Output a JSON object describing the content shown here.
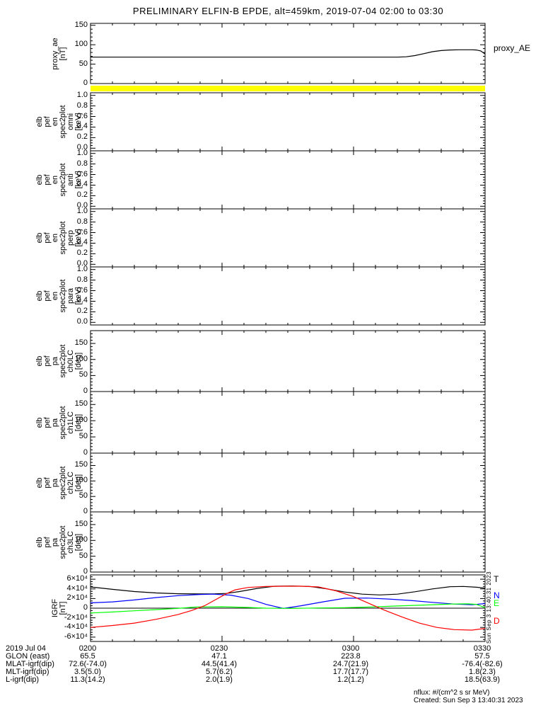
{
  "title": "PRELIMINARY ELFIN-B EPDE, alt=459km, 2019-07-04 02:00 to 03:30",
  "side_timestamp": "Sun Sep  3 13:40:31 2023",
  "footer": {
    "nflux": "nflux: #/(cm^2 s sr MeV)",
    "created": "Created: Sun Sep  3 13:40:31 2023"
  },
  "xaxis": {
    "date_label": "2019 Jul 04",
    "range_minutes": [
      0,
      90
    ],
    "tick_minutes": [
      0,
      30,
      60,
      90
    ],
    "tick_labels": [
      "0200",
      "0230",
      "0300",
      "0330"
    ],
    "minor_step_minutes": 5
  },
  "table": {
    "rows": [
      {
        "label": "GLON (east)",
        "values": [
          "65.5",
          "47.1",
          "223.8",
          "57.5"
        ]
      },
      {
        "label": "MLAT-igrf(dip)",
        "values": [
          "72.6(-74.0)",
          "44.5(41.4)",
          "24.7(21.9)",
          "-76.4(-82.6)"
        ]
      },
      {
        "label": "MLT-igrf(dip)",
        "values": [
          "3.5(5.0)",
          "5.7(6.2)",
          "17.7(17.7)",
          "1.8(2.3)"
        ]
      },
      {
        "label": "L-igrf(dip)",
        "values": [
          "11.3(14.2)",
          "2.0(1.9)",
          "1.2(1.2)",
          "18.5(63.9)"
        ]
      }
    ]
  },
  "chart_data": [
    {
      "id": "proxy_ae",
      "type": "line",
      "ylabel_lines": [
        "proxy_ae",
        "[nT]"
      ],
      "ylim": [
        0,
        155
      ],
      "yminor": 10,
      "yticks": [
        {
          "v": 0,
          "label": "0"
        },
        {
          "v": 50,
          "label": "50"
        },
        {
          "v": 100,
          "label": "100"
        },
        {
          "v": 150,
          "label": "150"
        }
      ],
      "right_labels": [
        {
          "text": "proxy_AE",
          "color": "#000000"
        }
      ],
      "series": [
        {
          "name": "proxy_AE",
          "color": "#000000",
          "x": [
            0,
            10,
            20,
            30,
            40,
            50,
            60,
            66,
            70,
            72,
            74,
            76,
            78,
            80,
            82,
            84,
            86,
            87,
            88,
            89,
            90
          ],
          "y": [
            68,
            68,
            68,
            68,
            68,
            68,
            68,
            68,
            68,
            69,
            72,
            77,
            82,
            85,
            86.5,
            87,
            87,
            87,
            86.5,
            84,
            76
          ]
        }
      ]
    },
    {
      "id": "omni_strip",
      "type": "strip",
      "color": "#FFFF00"
    },
    {
      "id": "omni",
      "type": "spec",
      "ylabel_lines": [
        "elb",
        "pef",
        "en",
        "spec2plot",
        "omni",
        "[keV]"
      ],
      "ylim": [
        -0.05,
        1.05
      ],
      "yminor": 0.05,
      "yticks": [
        {
          "v": 0,
          "label": "0.0"
        },
        {
          "v": 0.2,
          "label": "0.2"
        },
        {
          "v": 0.4,
          "label": "0.4"
        },
        {
          "v": 0.6,
          "label": "0.6"
        },
        {
          "v": 0.8,
          "label": "0.8"
        },
        {
          "v": 1.0,
          "label": "1.0"
        }
      ],
      "series": []
    },
    {
      "id": "anti",
      "type": "spec",
      "ylabel_lines": [
        "elb",
        "pef",
        "en",
        "spec2plot",
        "anti",
        "[keV]"
      ],
      "ylim": [
        -0.05,
        1.05
      ],
      "yminor": 0.05,
      "yticks": [
        {
          "v": 0,
          "label": "0.0"
        },
        {
          "v": 0.2,
          "label": "0.2"
        },
        {
          "v": 0.4,
          "label": "0.4"
        },
        {
          "v": 0.6,
          "label": "0.6"
        },
        {
          "v": 0.8,
          "label": "0.8"
        },
        {
          "v": 1.0,
          "label": "1.0"
        }
      ],
      "series": []
    },
    {
      "id": "perp",
      "type": "spec",
      "ylabel_lines": [
        "elb",
        "pef",
        "en",
        "spec2plot",
        "perp",
        "[keV]"
      ],
      "ylim": [
        -0.05,
        1.05
      ],
      "yminor": 0.05,
      "yticks": [
        {
          "v": 0,
          "label": "0.0"
        },
        {
          "v": 0.2,
          "label": "0.2"
        },
        {
          "v": 0.4,
          "label": "0.4"
        },
        {
          "v": 0.6,
          "label": "0.6"
        },
        {
          "v": 0.8,
          "label": "0.8"
        },
        {
          "v": 1.0,
          "label": "1.0"
        }
      ],
      "series": []
    },
    {
      "id": "para",
      "type": "spec",
      "ylabel_lines": [
        "elb",
        "pef",
        "en",
        "spec2plot",
        "para",
        "[keV]"
      ],
      "ylim": [
        -0.05,
        1.05
      ],
      "yminor": 0.05,
      "yticks": [
        {
          "v": 0,
          "label": "0.0"
        },
        {
          "v": 0.2,
          "label": "0.2"
        },
        {
          "v": 0.4,
          "label": "0.4"
        },
        {
          "v": 0.6,
          "label": "0.6"
        },
        {
          "v": 0.8,
          "label": "0.8"
        },
        {
          "v": 1.0,
          "label": "1.0"
        }
      ],
      "series": []
    },
    {
      "id": "ch0LC",
      "type": "spec",
      "ylabel_lines": [
        "elb",
        "pef",
        "pa",
        "spec2plot",
        "ch0LC",
        "[deg]"
      ],
      "ylim": [
        0,
        190
      ],
      "yminor": 10,
      "yticks": [
        {
          "v": 0,
          "label": "0"
        },
        {
          "v": 50,
          "label": "50"
        },
        {
          "v": 100,
          "label": "100"
        },
        {
          "v": 150,
          "label": "150"
        }
      ],
      "series": []
    },
    {
      "id": "ch1LC",
      "type": "spec",
      "ylabel_lines": [
        "elb",
        "pef",
        "pa",
        "spec2plot",
        "ch1LC",
        "[deg]"
      ],
      "ylim": [
        0,
        190
      ],
      "yminor": 10,
      "yticks": [
        {
          "v": 0,
          "label": "0"
        },
        {
          "v": 50,
          "label": "50"
        },
        {
          "v": 100,
          "label": "100"
        },
        {
          "v": 150,
          "label": "150"
        }
      ],
      "series": []
    },
    {
      "id": "ch2LC",
      "type": "spec",
      "ylabel_lines": [
        "elb",
        "pef",
        "pa",
        "spec2plot",
        "ch2LC",
        "[deg]"
      ],
      "ylim": [
        0,
        190
      ],
      "yminor": 10,
      "yticks": [
        {
          "v": 0,
          "label": "0"
        },
        {
          "v": 50,
          "label": "50"
        },
        {
          "v": 100,
          "label": "100"
        },
        {
          "v": 150,
          "label": "150"
        }
      ],
      "series": []
    },
    {
      "id": "ch3LC",
      "type": "spec",
      "ylabel_lines": [
        "elb",
        "pef",
        "pa",
        "spec2plot",
        "ch3LC",
        "[deg]"
      ],
      "ylim": [
        0,
        190
      ],
      "yminor": 10,
      "yticks": [
        {
          "v": 0,
          "label": "0"
        },
        {
          "v": 50,
          "label": "50"
        },
        {
          "v": 100,
          "label": "100"
        },
        {
          "v": 150,
          "label": "150"
        }
      ],
      "series": []
    },
    {
      "id": "igrf",
      "type": "line",
      "ylabel_lines": [
        "IGRF",
        "[nT]"
      ],
      "ylim": [
        -69000,
        69000
      ],
      "yminor": 5000,
      "zero_line": true,
      "yticks": [
        {
          "v": -60000,
          "label": "-6×10⁴"
        },
        {
          "v": -40000,
          "label": "-4×10⁴"
        },
        {
          "v": -20000,
          "label": "-2×10⁴"
        },
        {
          "v": 0,
          "label": "0"
        },
        {
          "v": 20000,
          "label": "2×10⁴"
        },
        {
          "v": 40000,
          "label": "4×10⁴"
        },
        {
          "v": 60000,
          "label": "6×10⁴"
        }
      ],
      "right_labels": [
        {
          "text": "T",
          "color": "#000000"
        },
        {
          "text": "N",
          "color": "#0000FF"
        },
        {
          "text": "E",
          "color": "#00FF00"
        },
        {
          "text": "D",
          "color": "#FF0000"
        }
      ],
      "series": [
        {
          "name": "T",
          "color": "#000000",
          "x": [
            0,
            5,
            10,
            15,
            20,
            25,
            28,
            31,
            34,
            38,
            42,
            46,
            50,
            54,
            58,
            62,
            66,
            70,
            74,
            78,
            82,
            85,
            88,
            90
          ],
          "y": [
            44000,
            39000,
            34500,
            31500,
            30000,
            29500,
            29500,
            30500,
            34500,
            41000,
            45500,
            46000,
            45000,
            40000,
            33500,
            29000,
            27500,
            29000,
            34000,
            40000,
            44500,
            45000,
            43500,
            41500
          ]
        },
        {
          "name": "N",
          "color": "#0000FF",
          "x": [
            0,
            5,
            10,
            15,
            20,
            25,
            28,
            32,
            36,
            40,
            44,
            48,
            53,
            58,
            63,
            68,
            73,
            78,
            83,
            87,
            90
          ],
          "y": [
            11000,
            13000,
            17000,
            22000,
            26000,
            28500,
            29000,
            27000,
            20000,
            8000,
            -500,
            5000,
            13000,
            20500,
            21000,
            19000,
            16000,
            12000,
            8500,
            7000,
            9500
          ]
        },
        {
          "name": "E",
          "color": "#00FF00",
          "x": [
            0,
            5,
            10,
            15,
            20,
            24,
            30,
            36,
            40,
            46,
            52,
            58,
            64,
            70,
            76,
            82,
            86,
            88,
            90
          ],
          "y": [
            -10000,
            -8000,
            -5500,
            -3000,
            -500,
            2500,
            3000,
            1500,
            0,
            -500,
            500,
            1000,
            2500,
            4500,
            6500,
            8500,
            9000,
            8000,
            1000
          ]
        },
        {
          "name": "D",
          "color": "#FF0000",
          "x": [
            0,
            5,
            10,
            15,
            20,
            23,
            26,
            29,
            31,
            33,
            36,
            40,
            44,
            48,
            52,
            56,
            60,
            64,
            67,
            71,
            75,
            79,
            83,
            87,
            90
          ],
          "y": [
            -40000,
            -36000,
            -31000,
            -23000,
            -13000,
            -5000,
            5000,
            20000,
            30000,
            38000,
            43000,
            45000,
            45500,
            45500,
            44000,
            36000,
            24000,
            8000,
            -4000,
            -18000,
            -31000,
            -40000,
            -44500,
            -45500,
            -42000
          ]
        }
      ]
    }
  ]
}
